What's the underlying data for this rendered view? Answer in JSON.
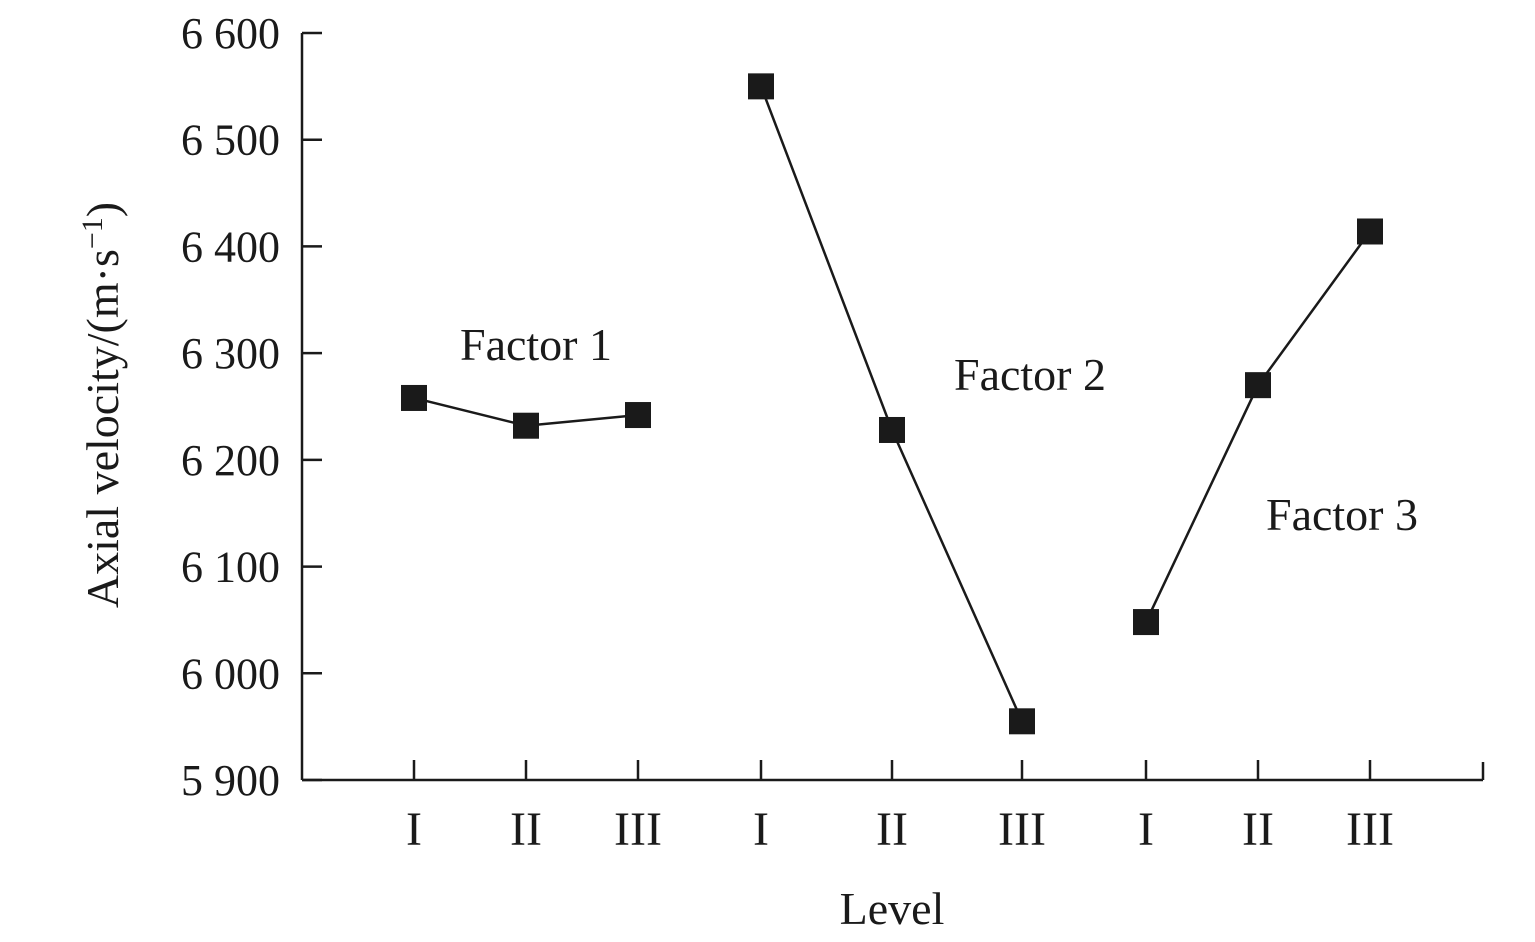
{
  "chart_data": {
    "type": "line",
    "xlabel": "Level",
    "ylabel": "Axial velocity/(m·s",
    "ylabel_superscript": "−1",
    "ylabel_suffix": ")",
    "ylim": [
      5900,
      6600
    ],
    "yticks": [
      5900,
      6000,
      6100,
      6200,
      6300,
      6400,
      6500,
      6600
    ],
    "ytick_labels": [
      "5 900",
      "6 000",
      "6 100",
      "6 200",
      "6 300",
      "6 400",
      "6 500",
      "6 600"
    ],
    "grid": false,
    "legend": "none",
    "marker": "square",
    "series": [
      {
        "name": "Factor 1",
        "categories": [
          "I",
          "II",
          "III"
        ],
        "values": [
          6258,
          6232,
          6242
        ]
      },
      {
        "name": "Factor 2",
        "categories": [
          "I",
          "II",
          "III"
        ],
        "values": [
          6550,
          6228,
          5955
        ]
      },
      {
        "name": "Factor 3",
        "categories": [
          "I",
          "II",
          "III"
        ],
        "values": [
          6048,
          6270,
          6414
        ]
      }
    ]
  }
}
